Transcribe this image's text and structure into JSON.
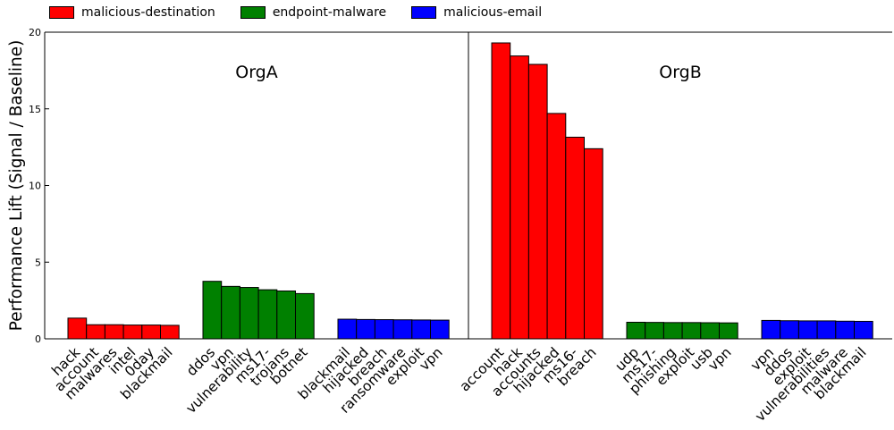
{
  "chart_data": {
    "type": "bar",
    "ylabel": "Performance Lift (Signal / Baseline)",
    "xlabel": "",
    "ylim": [
      0,
      20
    ],
    "yticks": [
      0,
      5,
      10,
      15,
      20
    ],
    "grid": false,
    "legend_position": "top-left",
    "series": [
      {
        "name": "malicious-destination",
        "color": "#ff0000"
      },
      {
        "name": "endpoint-malware",
        "color": "#008000"
      },
      {
        "name": "malicious-email",
        "color": "#0000ff"
      }
    ],
    "panels": [
      {
        "title": "OrgA",
        "groups": [
          {
            "series": "malicious-destination",
            "categories": [
              "hack",
              "account",
              "malwares",
              "intel",
              "0day",
              "blackmail"
            ],
            "values": [
              1.35,
              0.92,
              0.92,
              0.9,
              0.9,
              0.88
            ]
          },
          {
            "series": "endpoint-malware",
            "categories": [
              "ddos",
              "vpn",
              "vulnerability",
              "ms17-",
              "trojans",
              "botnet"
            ],
            "values": [
              3.75,
              3.42,
              3.35,
              3.2,
              3.12,
              2.95
            ]
          },
          {
            "series": "malicious-email",
            "categories": [
              "blackmail",
              "hijacked",
              "breach",
              "ransomware",
              "exploit",
              "vpn"
            ],
            "values": [
              1.28,
              1.26,
              1.25,
              1.24,
              1.23,
              1.22
            ]
          }
        ]
      },
      {
        "title": "OrgB",
        "groups": [
          {
            "series": "malicious-destination",
            "categories": [
              "account",
              "hack",
              "accounts",
              "hijacked",
              "ms16-",
              "breach"
            ],
            "values": [
              19.3,
              18.45,
              17.9,
              14.7,
              13.15,
              12.4
            ]
          },
          {
            "series": "endpoint-malware",
            "categories": [
              "udp",
              "ms17-",
              "phishing",
              "exploit",
              "usb",
              "vpn"
            ],
            "values": [
              1.08,
              1.07,
              1.06,
              1.06,
              1.05,
              1.04
            ]
          },
          {
            "series": "malicious-email",
            "categories": [
              "vpn",
              "ddos",
              "exploit",
              "vulnerabilities",
              "malware",
              "blackmail"
            ],
            "values": [
              1.2,
              1.18,
              1.17,
              1.17,
              1.15,
              1.14
            ]
          }
        ]
      }
    ]
  }
}
